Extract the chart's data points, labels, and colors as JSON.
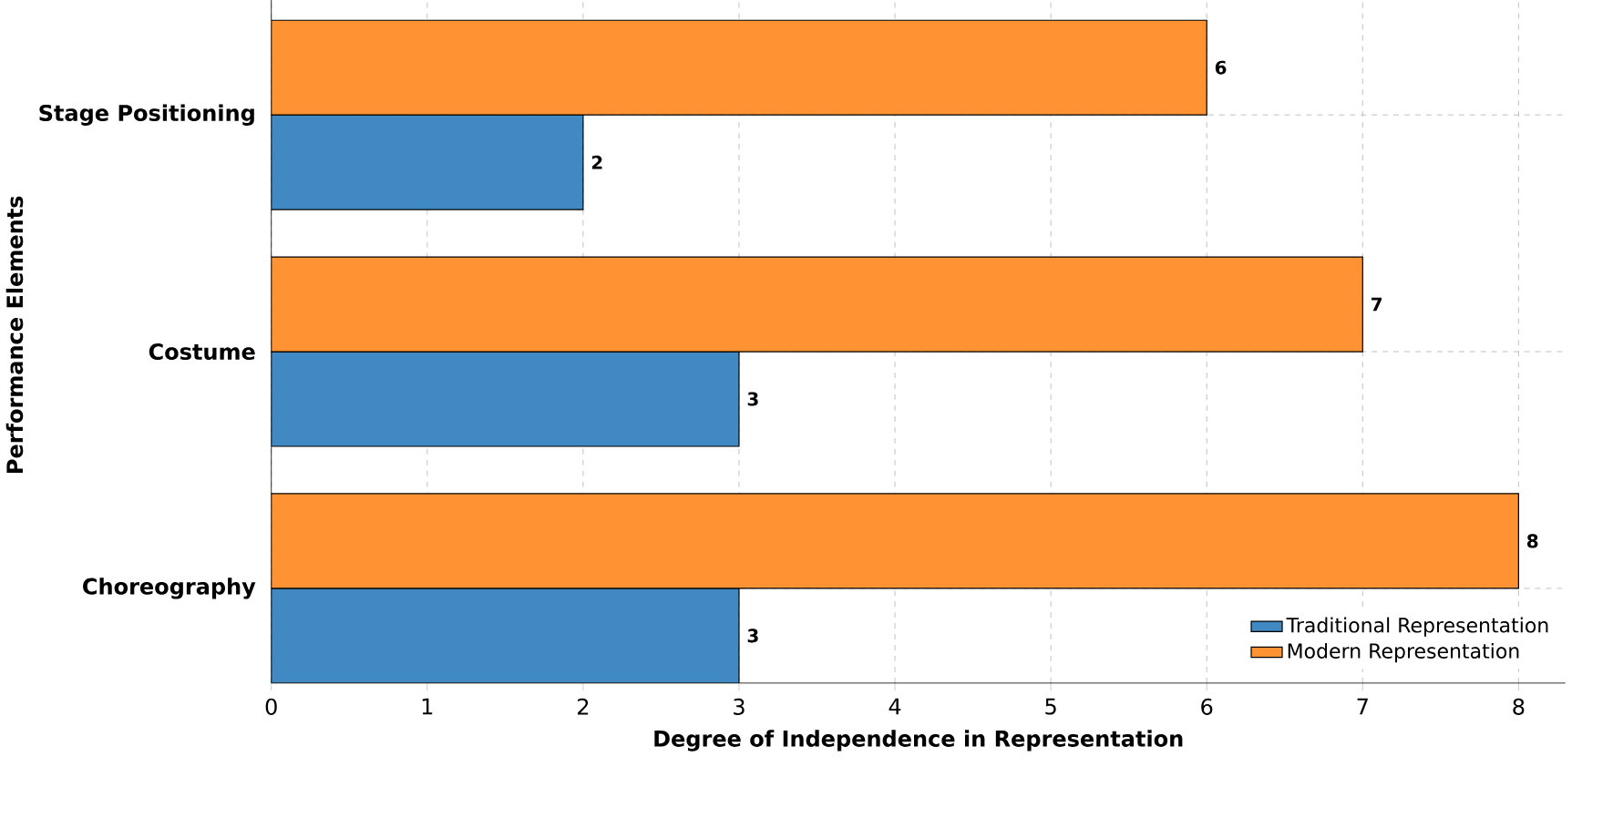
{
  "chart_data": {
    "type": "bar",
    "orientation": "horizontal",
    "xlabel": "Degree of Independence in Representation",
    "ylabel": "Performance Elements",
    "categories": [
      "Stage Positioning",
      "Costume",
      "Choreography"
    ],
    "series": [
      {
        "name": "Traditional Representation",
        "color": "#4189c2",
        "values": [
          2,
          3,
          3
        ]
      },
      {
        "name": "Modern Representation",
        "color": "#ff9232",
        "values": [
          6,
          7,
          8
        ]
      }
    ],
    "xlim": [
      0,
      8.3
    ],
    "xticks": [
      0,
      1,
      2,
      3,
      4,
      5,
      6,
      7,
      8
    ],
    "grid": true,
    "legend": "bottom right",
    "data_labels": true
  }
}
